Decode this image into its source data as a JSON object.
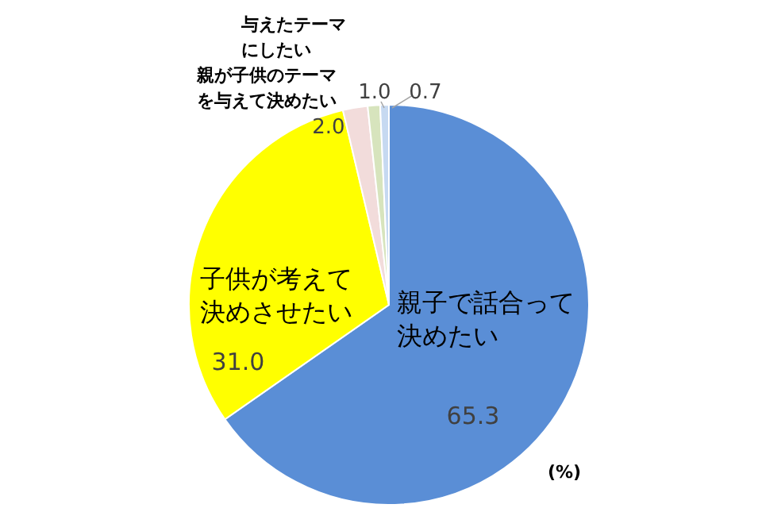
{
  "chart_data": {
    "type": "pie",
    "categories": [
      "親子で話合って決めたい",
      "子供が考えて決めさせたい",
      "親が子供のテーマを与えて決めたい",
      "与えたテーマにしたい",
      null
    ],
    "values": [
      65.3,
      31.0,
      2.0,
      1.0,
      0.7
    ],
    "value_labels": [
      "65.3",
      "31.0",
      "2.0",
      "1.0",
      "0.7"
    ],
    "colors": [
      "#5a8ed6",
      "#ffff00",
      "#f2dcdb",
      "#d7e4bd",
      "#c6d9f1"
    ],
    "annotations": [
      "(%)"
    ]
  }
}
